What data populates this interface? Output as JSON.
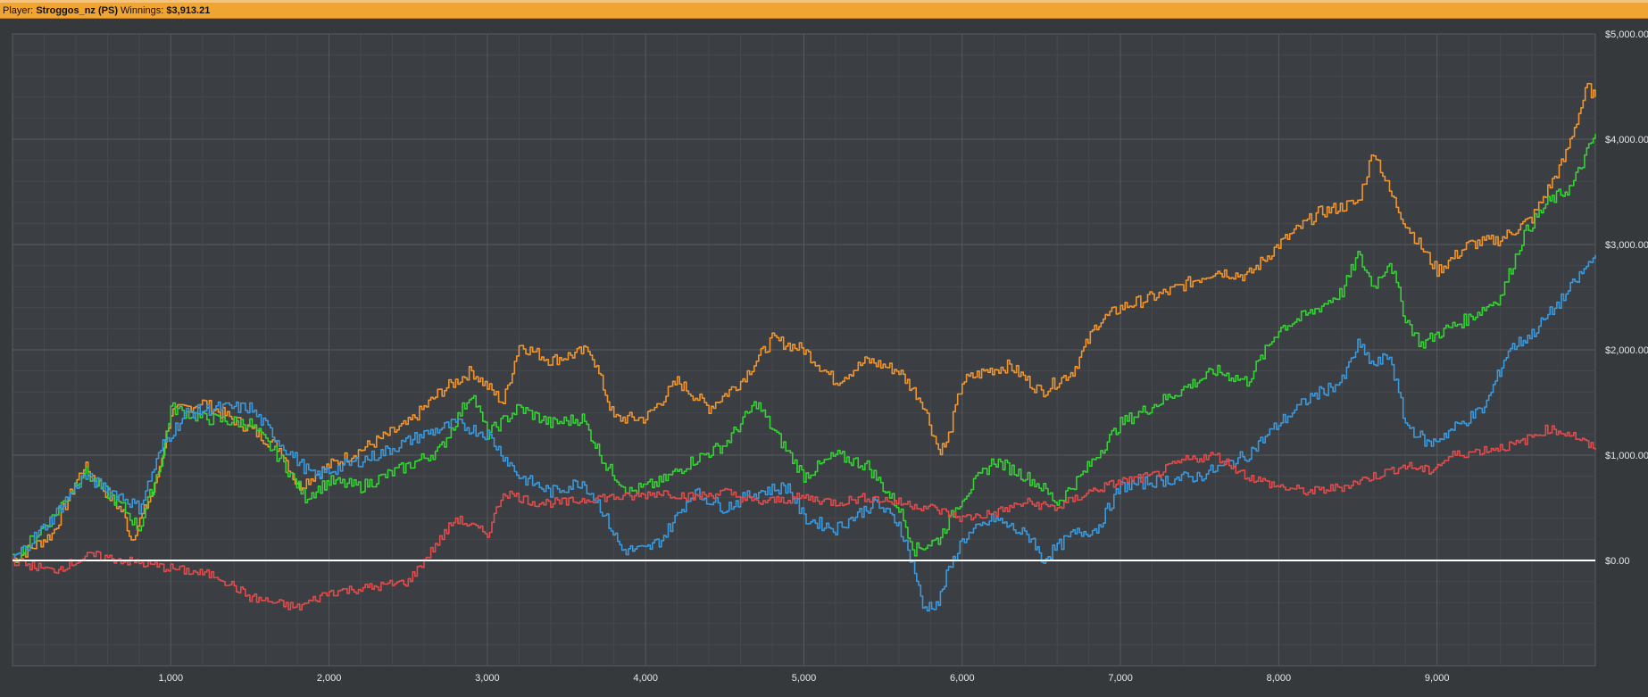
{
  "header": {
    "player_label": "Player:",
    "player_name": "Stroggos_nz (PS)",
    "winnings_label": "Winnings:",
    "winnings_value": "$3,913.21"
  },
  "chart_data": {
    "type": "line",
    "xlim": [
      0,
      10000
    ],
    "ylim": [
      -1000,
      5000
    ],
    "x_ticks": [
      1000,
      2000,
      3000,
      4000,
      5000,
      6000,
      7000,
      8000,
      9000
    ],
    "x_tick_labels": [
      "1,000",
      "2,000",
      "3,000",
      "4,000",
      "5,000",
      "6,000",
      "7,000",
      "8,000",
      "9,000"
    ],
    "y_ticks": [
      0,
      1000,
      2000,
      3000,
      4000,
      5000
    ],
    "y_tick_labels": [
      "$0.00",
      "$1,000.00",
      "$2,000.00",
      "$3,000.00",
      "$4,000.00",
      "$5,000.00"
    ],
    "grid": true,
    "zero_line_color": "#ffffff",
    "background": "#36393c",
    "series": [
      {
        "color": "#f0952e",
        "x": [
          0,
          250,
          450,
          700,
          750,
          900,
          1000,
          1200,
          1500,
          1700,
          1800,
          2000,
          2200,
          2500,
          2700,
          2900,
          3100,
          3200,
          3400,
          3650,
          3800,
          4000,
          4200,
          4400,
          4600,
          4800,
          5000,
          5200,
          5400,
          5600,
          5750,
          5850,
          5900,
          6000,
          6150,
          6300,
          6500,
          6700,
          6850,
          7000,
          7300,
          7600,
          7800,
          8000,
          8250,
          8500,
          8600,
          8700,
          8800,
          9000,
          9200,
          9400,
          9600,
          9800,
          9950,
          10000
        ],
        "y": [
          0,
          250,
          900,
          450,
          200,
          700,
          1400,
          1500,
          1250,
          1050,
          700,
          900,
          1050,
          1300,
          1600,
          1800,
          1500,
          2050,
          1900,
          2000,
          1350,
          1350,
          1700,
          1450,
          1700,
          2100,
          2000,
          1700,
          1900,
          1800,
          1500,
          1050,
          1100,
          1700,
          1800,
          1850,
          1600,
          1800,
          2250,
          2400,
          2550,
          2750,
          2700,
          3000,
          3300,
          3400,
          3900,
          3500,
          3200,
          2750,
          3000,
          3050,
          3250,
          3800,
          4500,
          4400
        ]
      },
      {
        "color": "#35d135",
        "x": [
          0,
          250,
          450,
          700,
          800,
          950,
          1000,
          1200,
          1500,
          1700,
          1850,
          2000,
          2200,
          2500,
          2700,
          2900,
          3000,
          3200,
          3400,
          3600,
          3750,
          3900,
          4100,
          4300,
          4500,
          4700,
          4800,
          5000,
          5200,
          5400,
          5600,
          5700,
          5850,
          6000,
          6200,
          6400,
          6500,
          6600,
          6750,
          7000,
          7300,
          7600,
          7800,
          8000,
          8200,
          8400,
          8500,
          8600,
          8700,
          8800,
          8900,
          9000,
          9200,
          9400,
          9550,
          9700,
          9850,
          10000
        ],
        "y": [
          0,
          400,
          850,
          500,
          300,
          1000,
          1450,
          1350,
          1300,
          950,
          600,
          750,
          700,
          900,
          1050,
          1600,
          1200,
          1450,
          1300,
          1350,
          900,
          650,
          750,
          950,
          1100,
          1500,
          1250,
          800,
          1000,
          900,
          500,
          100,
          200,
          600,
          950,
          800,
          700,
          550,
          800,
          1300,
          1550,
          1800,
          1700,
          2200,
          2350,
          2550,
          2900,
          2600,
          2850,
          2300,
          2050,
          2150,
          2300,
          2500,
          3100,
          3400,
          3550,
          4050
        ]
      },
      {
        "color": "#3a99dc",
        "x": [
          0,
          250,
          450,
          700,
          800,
          950,
          1100,
          1300,
          1500,
          1700,
          1900,
          2100,
          2300,
          2600,
          2800,
          3000,
          3200,
          3400,
          3600,
          3700,
          3850,
          4000,
          4100,
          4300,
          4500,
          4700,
          4900,
          5000,
          5200,
          5450,
          5600,
          5700,
          5750,
          5850,
          5900,
          6000,
          6200,
          6450,
          6500,
          6700,
          6850,
          7000,
          7200,
          7500,
          7800,
          8000,
          8200,
          8400,
          8500,
          8600,
          8700,
          8800,
          8950,
          9100,
          9300,
          9450,
          9600,
          9800,
          10000
        ],
        "y": [
          0,
          400,
          800,
          600,
          500,
          1100,
          1400,
          1450,
          1450,
          1100,
          800,
          900,
          1000,
          1200,
          1300,
          1200,
          800,
          650,
          750,
          550,
          100,
          100,
          200,
          650,
          500,
          650,
          700,
          400,
          300,
          550,
          350,
          -100,
          -450,
          -400,
          -150,
          200,
          400,
          200,
          0,
          250,
          300,
          700,
          750,
          800,
          1000,
          1300,
          1550,
          1700,
          2050,
          1850,
          1950,
          1300,
          1100,
          1250,
          1450,
          2000,
          2150,
          2500,
          2900
        ]
      },
      {
        "color": "#e04c4c",
        "x": [
          0,
          250,
          500,
          700,
          900,
          1100,
          1300,
          1500,
          1800,
          2000,
          2300,
          2500,
          2600,
          2800,
          3000,
          3100,
          3300,
          3500,
          3700,
          3900,
          4100,
          4300,
          4500,
          4700,
          5000,
          5200,
          5400,
          5600,
          5800,
          6000,
          6200,
          6400,
          6600,
          6800,
          7000,
          7200,
          7400,
          7600,
          7800,
          8000,
          8200,
          8400,
          8600,
          8800,
          8950,
          9100,
          9300,
          9500,
          9700,
          9850,
          10000
        ],
        "y": [
          0,
          -100,
          50,
          0,
          -50,
          -100,
          -150,
          -350,
          -450,
          -300,
          -250,
          -200,
          0,
          400,
          250,
          650,
          550,
          550,
          600,
          600,
          650,
          600,
          650,
          550,
          600,
          550,
          600,
          550,
          500,
          400,
          450,
          550,
          500,
          650,
          750,
          800,
          950,
          1000,
          800,
          700,
          650,
          700,
          800,
          900,
          850,
          1000,
          1050,
          1100,
          1250,
          1200,
          1050
        ]
      }
    ]
  }
}
